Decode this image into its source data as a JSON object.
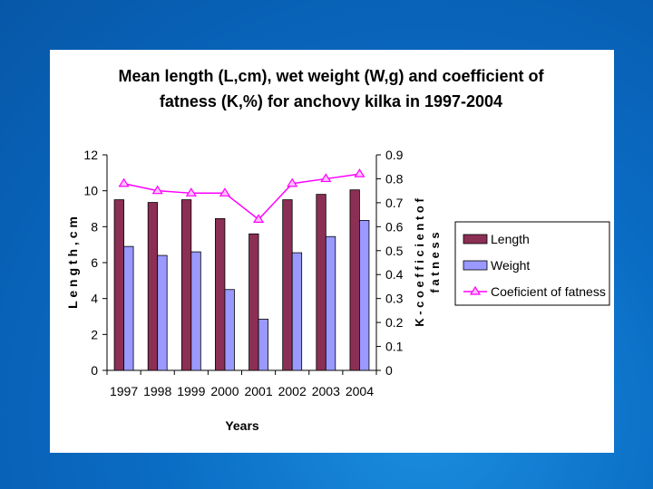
{
  "chart_data": {
    "type": "bar",
    "title_lines": [
      "Mean length (L,cm), wet weight (W,g) and coefficient of",
      "fatness (K,%) for anchovy kilka in 1997-2004"
    ],
    "xlabel": "Years",
    "ylabel": "L e n g t h , c m",
    "y2label_lines": [
      "K - c o e f f i c i e n t  o f",
      "f a t n e s s"
    ],
    "categories": [
      "1997",
      "1998",
      "1999",
      "2000",
      "2001",
      "2002",
      "2003",
      "2004"
    ],
    "ylim": [
      0,
      12
    ],
    "y_ticks": [
      "0",
      "2",
      "4",
      "6",
      "8",
      "10",
      "12"
    ],
    "y2lim": [
      0,
      0.9
    ],
    "y2_ticks": [
      "0",
      "0.1",
      "0.2",
      "0.3",
      "0.4",
      "0.5",
      "0.6",
      "0.7",
      "0.8",
      "0.9"
    ],
    "grid": false,
    "legend_position": "right",
    "series": [
      {
        "name": "Length",
        "kind": "bar",
        "axis": "left",
        "color": "#8b2f55",
        "values": [
          9.5,
          9.35,
          9.5,
          8.45,
          7.6,
          9.5,
          9.8,
          10.05
        ]
      },
      {
        "name": "Weight",
        "kind": "bar",
        "axis": "left",
        "color": "#9999ff",
        "values": [
          6.9,
          6.4,
          6.6,
          4.5,
          2.85,
          6.55,
          7.45,
          8.35
        ]
      },
      {
        "name": "Coeficient of fatness",
        "kind": "line",
        "axis": "right",
        "color": "#ff00ff",
        "values": [
          0.78,
          0.75,
          0.74,
          0.74,
          0.63,
          0.78,
          0.8,
          0.82
        ]
      }
    ]
  }
}
